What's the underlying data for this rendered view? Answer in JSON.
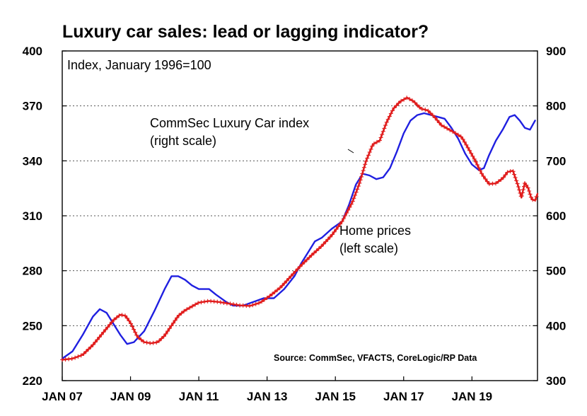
{
  "chart_data": {
    "type": "line",
    "title": "Luxury car sales: lead or lagging indicator?",
    "left_axis": {
      "label": "Index, January 1996=100",
      "ylim": [
        220,
        400
      ],
      "ticks": [
        220,
        250,
        280,
        310,
        340,
        370,
        400
      ]
    },
    "right_axis": {
      "ylim": [
        300,
        900
      ],
      "ticks": [
        300,
        400,
        500,
        600,
        700,
        800,
        900
      ]
    },
    "x_axis": {
      "xlim": [
        2007.0,
        2020.92
      ],
      "ticks": [
        2007,
        2009,
        2011,
        2013,
        2015,
        2017,
        2019
      ],
      "tick_labels": [
        "JAN 07",
        "JAN 09",
        "JAN 11",
        "JAN 13",
        "JAN 15",
        "JAN 17",
        "JAN 19"
      ]
    },
    "source": "Source: CommSec, VFACTS, CoreLogic/RP Data",
    "series": [
      {
        "name": "Home prices",
        "axis": "left",
        "color": "#1f1fe0",
        "label_lines": [
          "Home prices",
          "(left scale)"
        ],
        "points": [
          [
            2007.0,
            232
          ],
          [
            2007.3,
            236
          ],
          [
            2007.6,
            245
          ],
          [
            2007.9,
            255
          ],
          [
            2008.1,
            259
          ],
          [
            2008.3,
            257
          ],
          [
            2008.5,
            251
          ],
          [
            2008.7,
            245
          ],
          [
            2008.9,
            240
          ],
          [
            2009.1,
            241
          ],
          [
            2009.4,
            247
          ],
          [
            2009.7,
            258
          ],
          [
            2010.0,
            270
          ],
          [
            2010.2,
            277
          ],
          [
            2010.4,
            277
          ],
          [
            2010.6,
            275
          ],
          [
            2010.8,
            272
          ],
          [
            2011.0,
            270
          ],
          [
            2011.3,
            270
          ],
          [
            2011.5,
            267
          ],
          [
            2011.8,
            263
          ],
          [
            2012.0,
            261
          ],
          [
            2012.3,
            261
          ],
          [
            2012.6,
            263
          ],
          [
            2012.9,
            265
          ],
          [
            2013.2,
            265
          ],
          [
            2013.5,
            270
          ],
          [
            2013.8,
            277
          ],
          [
            2014.0,
            284
          ],
          [
            2014.2,
            290
          ],
          [
            2014.4,
            296
          ],
          [
            2014.6,
            298
          ],
          [
            2014.9,
            303
          ],
          [
            2015.2,
            307
          ],
          [
            2015.4,
            316
          ],
          [
            2015.6,
            327
          ],
          [
            2015.8,
            333
          ],
          [
            2016.0,
            332
          ],
          [
            2016.2,
            330
          ],
          [
            2016.4,
            331
          ],
          [
            2016.6,
            336
          ],
          [
            2016.8,
            345
          ],
          [
            2017.0,
            355
          ],
          [
            2017.2,
            362
          ],
          [
            2017.4,
            365
          ],
          [
            2017.6,
            366
          ],
          [
            2017.8,
            365
          ],
          [
            2018.0,
            364
          ],
          [
            2018.2,
            363
          ],
          [
            2018.4,
            358
          ],
          [
            2018.6,
            352
          ],
          [
            2018.8,
            344
          ],
          [
            2019.0,
            338
          ],
          [
            2019.2,
            335
          ],
          [
            2019.35,
            336
          ],
          [
            2019.5,
            343
          ],
          [
            2019.7,
            351
          ],
          [
            2019.9,
            357
          ],
          [
            2020.1,
            364
          ],
          [
            2020.25,
            365
          ],
          [
            2020.4,
            362
          ],
          [
            2020.55,
            358
          ],
          [
            2020.7,
            357
          ],
          [
            2020.85,
            362
          ]
        ]
      },
      {
        "name": "CommSec Luxury Car index",
        "axis": "right",
        "color": "#e01b1b",
        "label_lines": [
          "CommSec Luxury Car index",
          "(right scale)"
        ],
        "points": [
          [
            2007.0,
            338
          ],
          [
            2007.3,
            340
          ],
          [
            2007.6,
            347
          ],
          [
            2007.9,
            365
          ],
          [
            2008.1,
            380
          ],
          [
            2008.3,
            395
          ],
          [
            2008.5,
            410
          ],
          [
            2008.7,
            420
          ],
          [
            2008.85,
            418
          ],
          [
            2009.0,
            405
          ],
          [
            2009.2,
            380
          ],
          [
            2009.4,
            370
          ],
          [
            2009.6,
            368
          ],
          [
            2009.8,
            370
          ],
          [
            2010.0,
            382
          ],
          [
            2010.2,
            400
          ],
          [
            2010.4,
            418
          ],
          [
            2010.6,
            428
          ],
          [
            2010.8,
            435
          ],
          [
            2011.0,
            442
          ],
          [
            2011.3,
            445
          ],
          [
            2011.6,
            443
          ],
          [
            2011.9,
            440
          ],
          [
            2012.2,
            437
          ],
          [
            2012.5,
            436
          ],
          [
            2012.8,
            442
          ],
          [
            2013.1,
            455
          ],
          [
            2013.4,
            470
          ],
          [
            2013.7,
            490
          ],
          [
            2014.0,
            510
          ],
          [
            2014.3,
            528
          ],
          [
            2014.6,
            545
          ],
          [
            2014.9,
            565
          ],
          [
            2015.2,
            590
          ],
          [
            2015.5,
            625
          ],
          [
            2015.7,
            658
          ],
          [
            2015.9,
            700
          ],
          [
            2016.1,
            730
          ],
          [
            2016.3,
            737
          ],
          [
            2016.5,
            770
          ],
          [
            2016.7,
            795
          ],
          [
            2016.9,
            808
          ],
          [
            2017.1,
            815
          ],
          [
            2017.3,
            808
          ],
          [
            2017.5,
            795
          ],
          [
            2017.7,
            792
          ],
          [
            2017.9,
            780
          ],
          [
            2018.1,
            765
          ],
          [
            2018.3,
            758
          ],
          [
            2018.5,
            751
          ],
          [
            2018.7,
            743
          ],
          [
            2018.9,
            722
          ],
          [
            2019.1,
            700
          ],
          [
            2019.3,
            675
          ],
          [
            2019.5,
            658
          ],
          [
            2019.7,
            659
          ],
          [
            2019.9,
            668
          ],
          [
            2020.05,
            680
          ],
          [
            2020.2,
            682
          ],
          [
            2020.35,
            655
          ],
          [
            2020.45,
            633
          ],
          [
            2020.55,
            660
          ],
          [
            2020.65,
            650
          ],
          [
            2020.75,
            630
          ],
          [
            2020.85,
            628
          ],
          [
            2020.92,
            640
          ]
        ]
      }
    ]
  }
}
